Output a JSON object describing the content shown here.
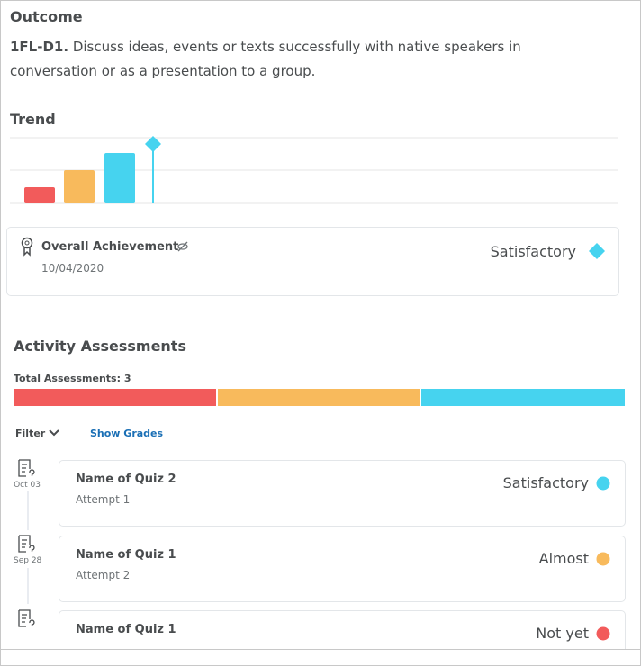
{
  "outcome": {
    "title": "Outcome",
    "code": "1FL-D1.",
    "description": "Discuss ideas, events or texts successfully with native speakers in conversation or as a presentation to a group."
  },
  "trend": {
    "title": "Trend"
  },
  "overall": {
    "label": "Overall Achievement",
    "date": "10/04/2020",
    "level": "Satisfactory"
  },
  "activity": {
    "title": "Activity Assessments",
    "total": "Total Assessments: 3",
    "filter": "Filter",
    "show_grades": "Show Grades",
    "items": [
      {
        "date": "Oct 03",
        "name": "Name of Quiz 2",
        "attempt": "Attempt 1",
        "level": "Satisfactory"
      },
      {
        "date": "Sep 28",
        "name": "Name of Quiz 1",
        "attempt": "Attempt 2",
        "level": "Almost"
      },
      {
        "name": "Name of Quiz 1",
        "level": "Not yet"
      }
    ]
  }
}
